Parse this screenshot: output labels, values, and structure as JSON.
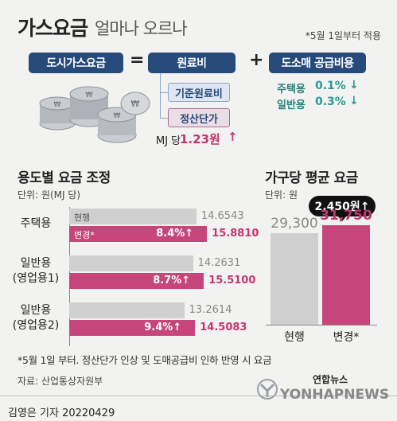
{
  "header": {
    "title_main": "가스요금",
    "title_sub": "얼마나 오르나",
    "note": "*5월 1일부터 적용"
  },
  "formula": {
    "city_gas": "도시가스요금",
    "eq": "=",
    "raw": "원료비",
    "plus": "+",
    "wholesale": "도소매 공급비용",
    "base": "기준원료비",
    "settle": "정산단가",
    "mj_label": "MJ 당",
    "mj_value": "1.23원",
    "mj_arrow": "↑",
    "ws": [
      {
        "label": "주택용",
        "value": "0.1%",
        "arrow": "↓"
      },
      {
        "label": "일반용",
        "value": "0.3%",
        "arrow": "↓"
      }
    ]
  },
  "left_chart": {
    "title": "용도별 요금 조정",
    "unit": "단위: 원(MJ 당)",
    "tag_current": "현행",
    "tag_new": "변경*",
    "arrow": "↑"
  },
  "right_chart": {
    "title": "가구당 평균 요금",
    "unit": "단위: 원",
    "callout": "2,450원↑"
  },
  "chart_data": [
    {
      "type": "bar",
      "title": "용도별 요금 조정",
      "ylabel": "단위: 원(MJ 당)",
      "categories": [
        "주택용",
        "일반용\n(영업용1)",
        "일반용\n(영업용2)"
      ],
      "series": [
        {
          "name": "현행",
          "values": [
            14.6543,
            14.2631,
            13.2614
          ],
          "color": "#cfcfcf"
        },
        {
          "name": "변경*",
          "values": [
            15.881,
            15.51,
            14.5083
          ],
          "color": "#c6457a"
        }
      ],
      "pct_change": [
        "8.4%",
        "8.7%",
        "9.4%"
      ],
      "orientation": "horizontal"
    },
    {
      "type": "bar",
      "title": "가구당 평균 요금",
      "ylabel": "단위: 원",
      "categories": [
        "현행",
        "변경*"
      ],
      "values": [
        29300,
        31750
      ],
      "labels": [
        "29,300",
        "31,750"
      ],
      "colors": [
        "#cfcfcf",
        "#c6457a"
      ],
      "annotation": "2,450원↑"
    }
  ],
  "footer": {
    "footnote": "*5월 1일 부터. 정산단가 인상 및 도매공급비 인하 반영 시 요금",
    "source": "자료: 산업통상자원부",
    "byline": "김영은 기자  20220429",
    "logo_top": "연합뉴스",
    "logo_main": "YONHAPNEWS"
  },
  "colors": {
    "navy": "#264a7a",
    "pink": "#c6457a",
    "teal": "#2a9a94",
    "gray_bar": "#cfcfcf"
  }
}
